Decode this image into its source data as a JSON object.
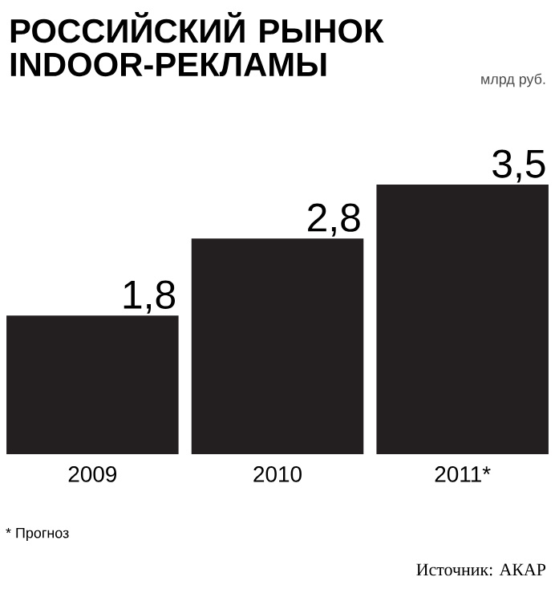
{
  "chart_data": {
    "type": "bar",
    "title": "РОССИЙСКИЙ РЫНОК INDOOR-РЕКЛАМЫ",
    "categories": [
      "2009",
      "2010",
      "2011*"
    ],
    "values": [
      1.8,
      2.8,
      3.5
    ],
    "value_labels": [
      "1,8",
      "2,8",
      "3,5"
    ],
    "color": "#231f20",
    "annotations": [
      "млрд руб.",
      "* Прогноз",
      "Источник: АКАР"
    ]
  }
}
